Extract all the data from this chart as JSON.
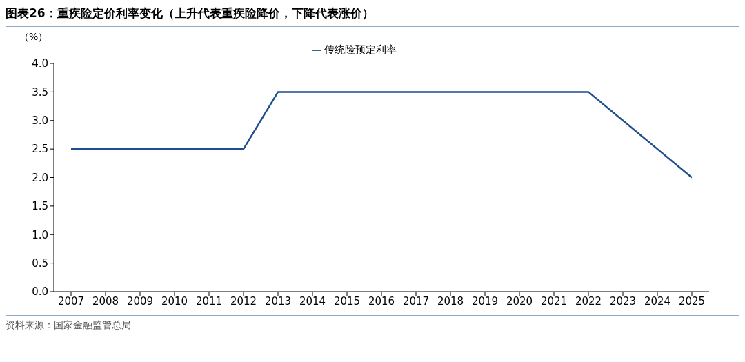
{
  "chart_data": {
    "type": "line",
    "title": "图表26：重疾险定价利率变化（上升代表重疾险降价，下降代表涨价）",
    "ylabel": "（%）",
    "categories": [
      "2007",
      "2008",
      "2009",
      "2010",
      "2011",
      "2012",
      "2013",
      "2014",
      "2015",
      "2016",
      "2017",
      "2018",
      "2019",
      "2020",
      "2021",
      "2022",
      "2023",
      "2024",
      "2025"
    ],
    "series": [
      {
        "name": "传统险预定利率",
        "color": "#1f4e8c",
        "values": [
          2.5,
          2.5,
          2.5,
          2.5,
          2.5,
          2.5,
          3.5,
          3.5,
          3.5,
          3.5,
          3.5,
          3.5,
          3.5,
          3.5,
          3.5,
          3.5,
          3.0,
          2.5,
          2.0
        ]
      }
    ],
    "ylim": [
      0,
      4
    ],
    "yticks": [
      {
        "value": 0,
        "label": "0.0"
      },
      0.5,
      {
        "value": 1,
        "label": "1.0"
      },
      1.5,
      {
        "value": 2,
        "label": "2.0"
      },
      2.5,
      {
        "value": 3,
        "label": "3.0"
      },
      3.5,
      {
        "value": 4,
        "label": "4.0"
      }
    ],
    "grid": false,
    "legend": "top",
    "marker": "none",
    "line_style": "solid",
    "annotations": [
      "资料来源：国家金融监管总局"
    ]
  }
}
